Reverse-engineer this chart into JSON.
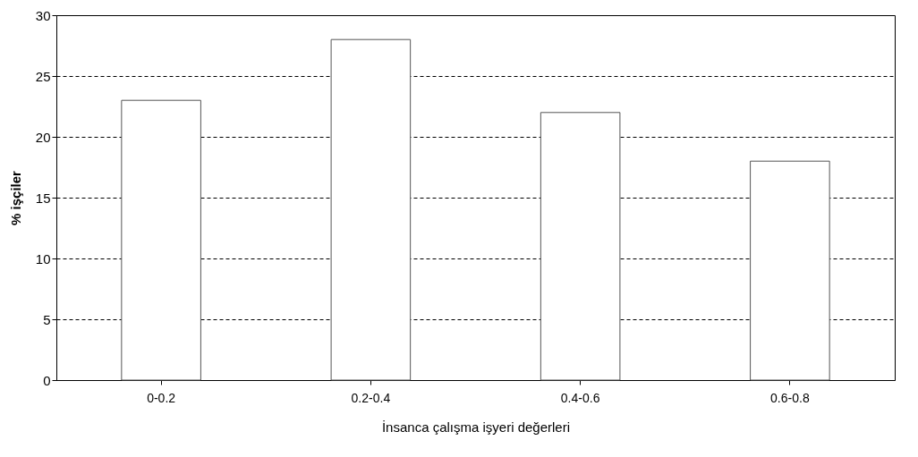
{
  "chart_data": {
    "type": "bar",
    "xlabel": "İnsanca çalışma işyeri değerleri",
    "ylabel": "% işçiler",
    "categories": [
      "0-0.2",
      "0.2-0.4",
      "0.4-0.6",
      "0.6-0.8"
    ],
    "values": [
      23,
      28,
      22,
      18
    ],
    "color": "#ffffff",
    "ylim": [
      0,
      30
    ],
    "yticks": [
      0,
      5,
      10,
      15,
      20,
      25,
      30
    ],
    "grid": "y",
    "line_style": "dashed"
  }
}
